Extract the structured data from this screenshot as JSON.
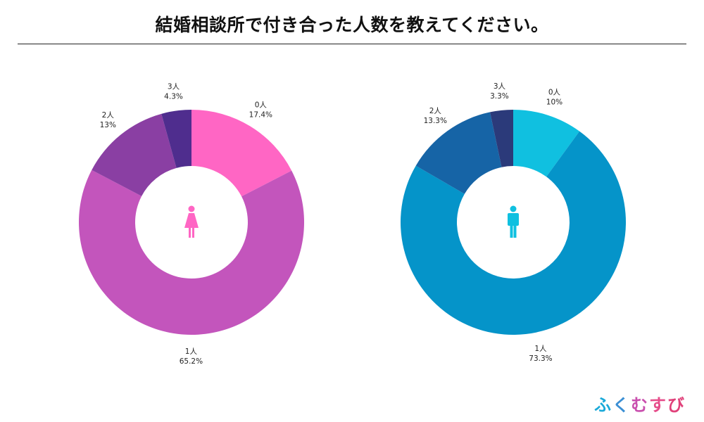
{
  "title": "結婚相談所で付き合った人数を教えてください。",
  "brand": [
    "ふ",
    "く",
    "む",
    "す",
    "び"
  ],
  "icons": {
    "female": "female-person-icon",
    "male": "male-person-icon"
  },
  "chart_data": [
    {
      "type": "pie",
      "categories": [
        "0人",
        "1人",
        "2人",
        "3人"
      ],
      "values": [
        17.4,
        65.2,
        13,
        4.3
      ],
      "value_labels": [
        "17.4%",
        "65.2%",
        "13%",
        "4.3%"
      ],
      "colors": [
        "#ff66c4",
        "#c355bc",
        "#8a3fa3",
        "#4f2d8e"
      ],
      "icon": "female-person-icon",
      "icon_color": "#ff66c4"
    },
    {
      "type": "pie",
      "categories": [
        "0人",
        "1人",
        "2人",
        "3人"
      ],
      "values": [
        10,
        73.3,
        13.3,
        3.3
      ],
      "value_labels": [
        "10%",
        "73.3%",
        "13.3%",
        "3.3%"
      ],
      "colors": [
        "#10c0e0",
        "#0594c9",
        "#1664a6",
        "#2b3a7a"
      ],
      "icon": "male-person-icon",
      "icon_color": "#0fc0e0"
    }
  ]
}
